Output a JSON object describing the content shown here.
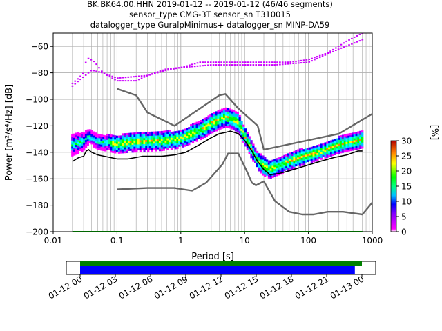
{
  "title_lines": [
    "BK.BK64.00.HHN   2019-01-12 -- 2019-01-12  (46/46 segments)",
    "sensor_type CMG-3T sensor_sn T310015",
    "datalogger_type GuralpMinimus+ datalogger_sn MINP-DA59"
  ],
  "chart_data": [
    {
      "type": "heatmap",
      "subtype": "probabilistic-power-spectral-density",
      "title": "BK.BK64.00.HHN   2019-01-12 -- 2019-01-12  (46/46 segments)",
      "xlabel": "Period [s]",
      "ylabel": "Power [m²/s⁴/Hz] [dB]",
      "xscale": "log",
      "xlim": [
        0.01,
        1000
      ],
      "ylim": [
        -200,
        -50
      ],
      "x_ticks": [
        0.01,
        0.1,
        1,
        10,
        100,
        1000
      ],
      "x_tick_labels": [
        "0.01",
        "0.1",
        "1",
        "10",
        "100",
        "1000"
      ],
      "y_ticks": [
        -200,
        -180,
        -160,
        -140,
        -120,
        -100,
        -80,
        -60
      ],
      "y_tick_labels": [
        "−200",
        "−180",
        "−160",
        "−140",
        "−120",
        "−100",
        "−80",
        "−60"
      ],
      "grid": true,
      "colorbar": {
        "label": "[%]",
        "range": [
          0,
          30
        ],
        "ticks": [
          0,
          5,
          10,
          15,
          20,
          25,
          30
        ],
        "colors": [
          "#ffffff",
          "#ff00ff",
          "#0000ff",
          "#00ffff",
          "#00ff00",
          "#ffff00",
          "#ff8000",
          "#ff0000"
        ]
      },
      "series": [
        {
          "style": "gray-model-line",
          "x": [
            0.1,
            0.2,
            0.3,
            0.8,
            4,
            5,
            8,
            16,
            20,
            300,
            1000
          ],
          "values": [
            -92,
            -97,
            -110,
            -120,
            -97,
            -96,
            -107,
            -120,
            -138,
            -126,
            -111
          ]
        },
        {
          "style": "gray-model-line",
          "x": [
            0.1,
            0.3,
            0.8,
            1.5,
            2.5,
            4.5,
            5.5,
            8,
            11,
            13,
            15,
            20,
            30,
            50,
            80,
            120,
            200,
            350,
            700,
            1000
          ],
          "values": [
            -168,
            -167,
            -167,
            -169,
            -163,
            -149,
            -141,
            -141,
            -155,
            -163,
            -165,
            -162,
            -177,
            -185,
            -187,
            -187,
            -185,
            -185,
            -187,
            -178
          ]
        },
        {
          "style": "black-mean-line",
          "x": [
            0.02,
            0.025,
            0.03,
            0.033,
            0.036,
            0.04,
            0.05,
            0.08,
            0.1,
            0.15,
            0.25,
            0.5,
            0.8,
            1.2,
            2,
            3,
            4,
            5,
            6,
            8,
            10,
            13,
            16,
            20,
            25,
            35,
            50,
            80,
            150,
            250,
            400,
            600,
            700
          ],
          "values": [
            -147,
            -144,
            -143,
            -139,
            -138,
            -140,
            -142,
            -144,
            -145,
            -145,
            -143,
            -143,
            -142,
            -140,
            -134,
            -129,
            -126,
            -125,
            -124,
            -126,
            -131,
            -139,
            -147,
            -153,
            -157,
            -156,
            -154,
            -151,
            -147,
            -144,
            -142,
            -139,
            -139
          ]
        },
        {
          "style": "magenta-upper-envelope",
          "x": [
            0.02,
            0.025,
            0.03,
            0.033,
            0.036,
            0.045,
            0.06,
            0.1,
            0.2,
            0.3,
            0.6,
            1,
            2,
            4,
            10,
            20,
            50,
            100,
            200,
            400,
            700
          ],
          "values": [
            -88,
            -84,
            -80,
            -70,
            -69,
            -72,
            -80,
            -86,
            -86,
            -82,
            -78,
            -76,
            -72,
            -72,
            -72,
            -72,
            -72,
            -70,
            -65,
            -56,
            -50
          ]
        },
        {
          "style": "magenta-lower-envelope",
          "x": [
            0.02,
            0.025,
            0.03,
            0.04,
            0.06,
            0.1,
            0.3,
            0.6,
            1,
            3,
            10,
            30,
            100,
            300,
            700
          ],
          "values": [
            -90,
            -86,
            -83,
            -78,
            -80,
            -84,
            -82,
            -77,
            -76,
            -74,
            -74,
            -74,
            -72,
            -62,
            -55
          ]
        },
        {
          "style": "density-band-upper",
          "x": [
            0.02,
            0.025,
            0.03,
            0.036,
            0.05,
            0.1,
            0.2,
            0.5,
            1,
            2,
            3,
            4,
            5,
            6,
            8,
            10,
            13,
            16,
            20,
            25,
            40,
            80,
            150,
            300,
            700
          ],
          "values": [
            -130,
            -129,
            -129,
            -126,
            -130,
            -131,
            -128,
            -128,
            -127,
            -120,
            -115,
            -112,
            -110,
            -111,
            -114,
            -124,
            -136,
            -143,
            -147,
            -150,
            -146,
            -141,
            -138,
            -132,
            -128
          ]
        },
        {
          "style": "density-band-lower",
          "x": [
            0.02,
            0.025,
            0.03,
            0.036,
            0.05,
            0.1,
            0.2,
            0.5,
            1,
            2,
            3,
            4,
            5,
            6,
            8,
            10,
            13,
            16,
            20,
            25,
            40,
            80,
            150,
            300,
            700
          ],
          "values": [
            -140,
            -138,
            -136,
            -131,
            -135,
            -138,
            -137,
            -136,
            -134,
            -128,
            -123,
            -120,
            -118,
            -119,
            -122,
            -131,
            -142,
            -150,
            -155,
            -157,
            -153,
            -147,
            -143,
            -138,
            -134
          ]
        },
        {
          "style": "green-floor",
          "x": [
            0.02,
            700
          ],
          "values": [
            -200,
            -200
          ]
        }
      ]
    },
    {
      "type": "timeline",
      "x_tick_labels": [
        "01-12 00",
        "01-12 03",
        "01-12 06",
        "01-12 09",
        "01-12 12",
        "01-12 15",
        "01-12 18",
        "01-12 21",
        "01-13 00"
      ],
      "bars": [
        {
          "name": "data-availability",
          "color": "#008000",
          "start_hour": 0.0,
          "end_hour": 24.0
        },
        {
          "name": "used-psd-segments",
          "color": "#0000ff",
          "start_hour": 0.0,
          "end_hour": 23.4
        }
      ]
    }
  ]
}
